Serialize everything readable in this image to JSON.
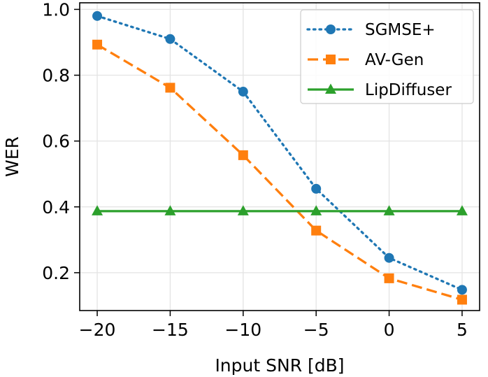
{
  "chart_data": {
    "type": "line",
    "title": "",
    "xlabel": "Input SNR [dB]",
    "ylabel": "WER",
    "x": [
      -20,
      -15,
      -10,
      -5,
      0,
      5
    ],
    "x_tick_labels": [
      "−20",
      "−15",
      "−10",
      "−5",
      "0",
      "5"
    ],
    "y_ticks": [
      0.2,
      0.4,
      0.6,
      0.8,
      1.0
    ],
    "y_tick_labels": [
      "0.2",
      "0.4",
      "0.6",
      "0.8",
      "1.0"
    ],
    "xlim": [
      -21.2,
      6.2
    ],
    "ylim": [
      0.085,
      1.02
    ],
    "grid": true,
    "legend_position": "top-right",
    "series": [
      {
        "name": "SGMSE+",
        "values": [
          0.98,
          0.91,
          0.75,
          0.455,
          0.245,
          0.148
        ],
        "color": "#1f77b4",
        "line_style": "dotted",
        "marker": "circle"
      },
      {
        "name": "AV-Gen",
        "values": [
          0.893,
          0.762,
          0.557,
          0.328,
          0.183,
          0.118
        ],
        "color": "#ff7f0e",
        "line_style": "dashed",
        "marker": "square"
      },
      {
        "name": "LipDiffuser",
        "values": [
          0.387,
          0.387,
          0.387,
          0.387,
          0.387,
          0.387
        ],
        "color": "#2ca02c",
        "line_style": "solid",
        "marker": "triangle"
      }
    ]
  }
}
